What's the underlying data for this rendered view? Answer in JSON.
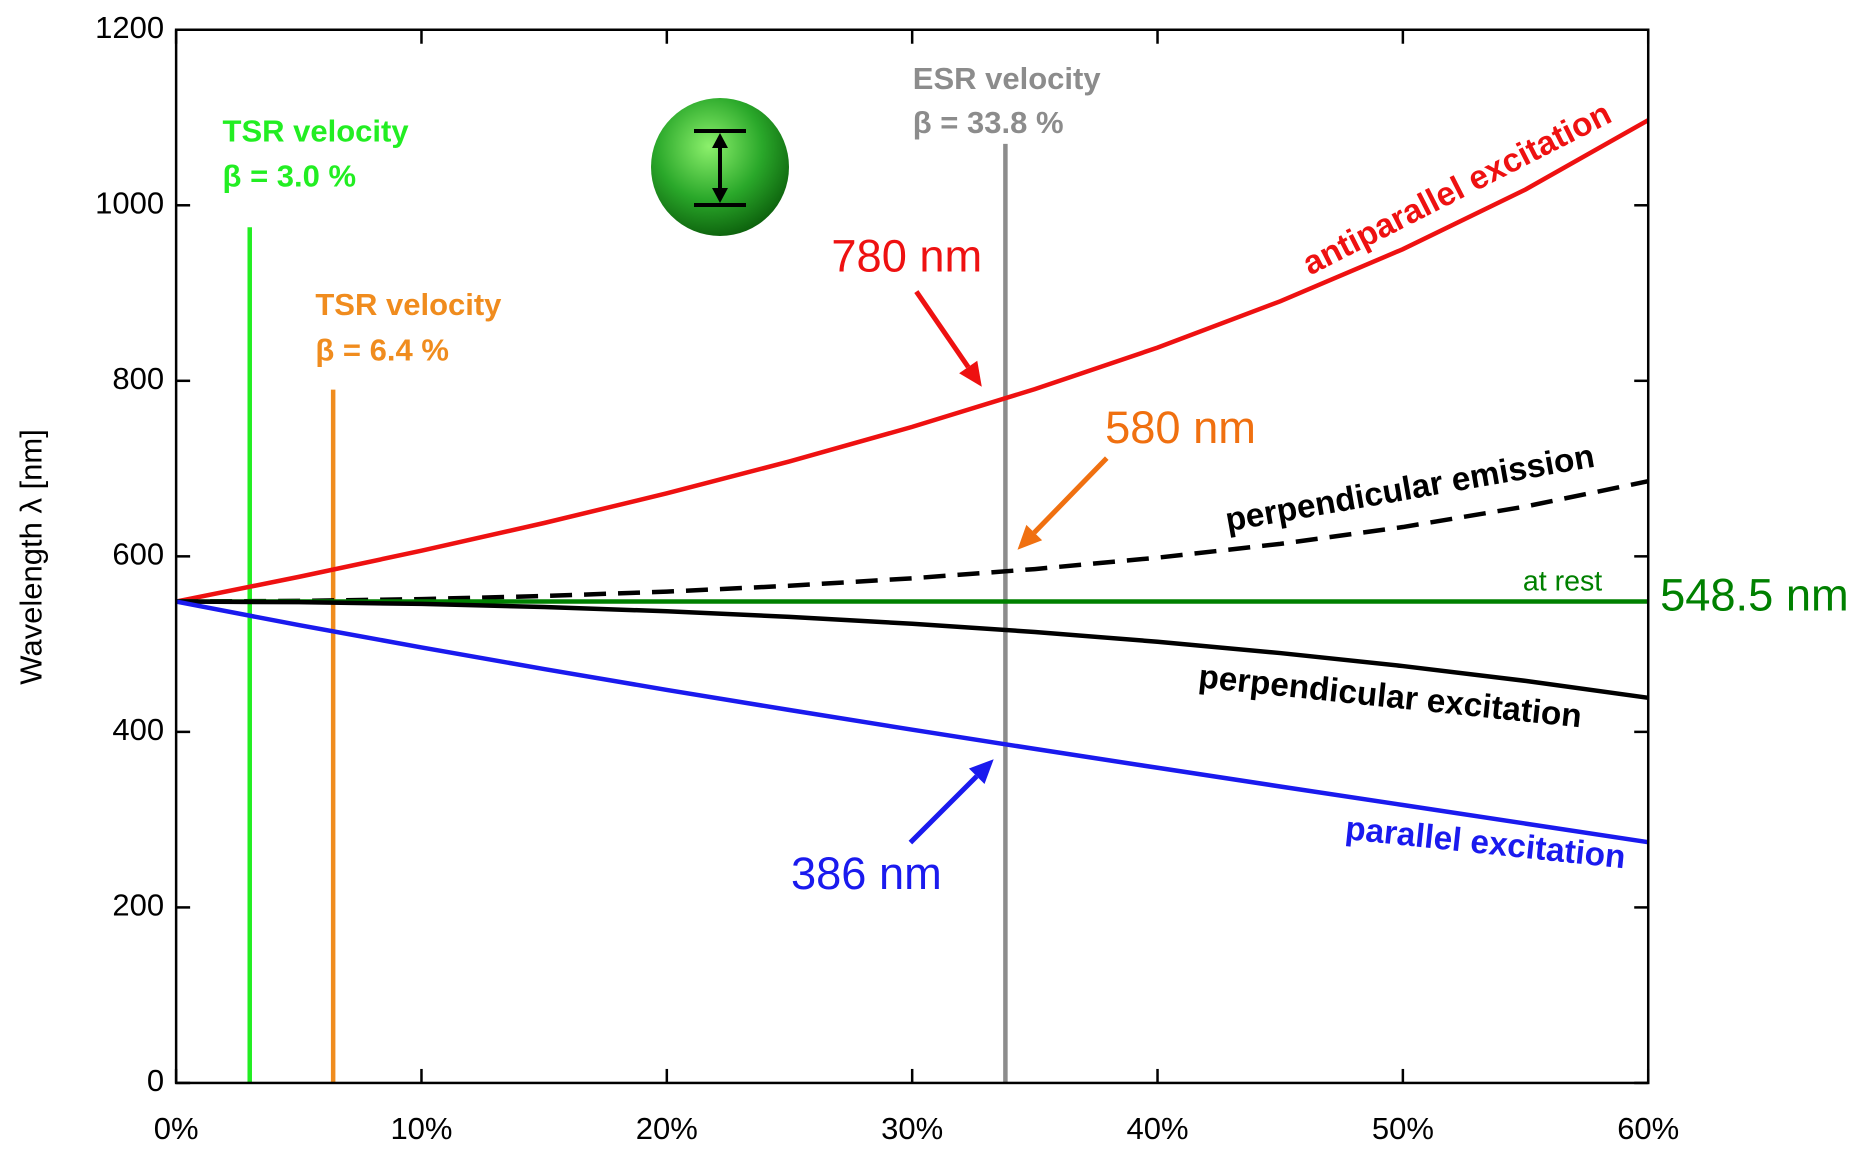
{
  "chart_data": {
    "type": "line",
    "y_label": "Wavelength λ [nm]",
    "x": [
      0,
      5,
      10,
      15,
      20,
      25,
      30,
      35,
      40,
      45,
      50,
      55,
      60
    ],
    "xlim": [
      0,
      60
    ],
    "xticks": [
      {
        "value": 0,
        "label": "0%"
      },
      {
        "value": 10,
        "label": "10%"
      },
      {
        "value": 20,
        "label": "20%"
      },
      {
        "value": 30,
        "label": "30%"
      },
      {
        "value": 40,
        "label": "40%"
      },
      {
        "value": 50,
        "label": "50%"
      },
      {
        "value": 60,
        "label": "60%"
      }
    ],
    "ylim": [
      0,
      1200
    ],
    "yticks": [
      0,
      200,
      400,
      600,
      800,
      1000,
      1200
    ],
    "series": [
      {
        "name": "antiparallel excitation",
        "color": "#ee1111",
        "style": "solid",
        "values": [
          548.5,
          576.6,
          606.4,
          638.0,
          671.8,
          708.1,
          747.5,
          790.5,
          837.8,
          890.6,
          950.0,
          1018.0,
          1097.0
        ]
      },
      {
        "name": "perpendicular emission",
        "color": "#000000",
        "style": "dashed",
        "values": [
          548.5,
          549.2,
          551.3,
          554.8,
          559.8,
          566.5,
          575.0,
          585.5,
          598.5,
          614.2,
          633.4,
          656.8,
          685.6
        ]
      },
      {
        "name": "at rest",
        "color": "#008000",
        "style": "solid",
        "values": [
          548.5,
          548.5,
          548.5,
          548.5,
          548.5,
          548.5,
          548.5,
          548.5,
          548.5,
          548.5,
          548.5,
          548.5,
          548.5
        ]
      },
      {
        "name": "perpendicular excitation",
        "color": "#000000",
        "style": "solid",
        "values": [
          548.5,
          547.8,
          545.8,
          542.3,
          537.4,
          531.1,
          523.2,
          513.8,
          502.7,
          489.8,
          475.0,
          458.1,
          438.8
        ]
      },
      {
        "name": "parallel excitation",
        "color": "#1a1aee",
        "style": "solid",
        "values": [
          548.5,
          521.7,
          496.2,
          471.6,
          447.8,
          424.9,
          402.5,
          380.6,
          359.1,
          337.8,
          316.7,
          295.5,
          274.3
        ]
      }
    ],
    "markers": [
      {
        "x": 3.0,
        "top": 975,
        "color": "#22ee22",
        "label": "TSR velocity",
        "beta": "β = 3.0 %"
      },
      {
        "x": 6.4,
        "top": 790,
        "color": "#f08c1e",
        "label": "TSR velocity",
        "beta": "β = 6.4 %"
      },
      {
        "x": 33.8,
        "top": 1070,
        "color": "#8c8c8c",
        "label": "ESR velocity",
        "beta": "β = 33.8 %"
      }
    ],
    "annotations": [
      {
        "text": "780 nm",
        "color": "#ee1111"
      },
      {
        "text": "580 nm",
        "color": "#f07010"
      },
      {
        "text": "386 nm",
        "color": "#1a1aee"
      },
      {
        "text": "548.5 nm",
        "color": "#008000"
      }
    ]
  }
}
